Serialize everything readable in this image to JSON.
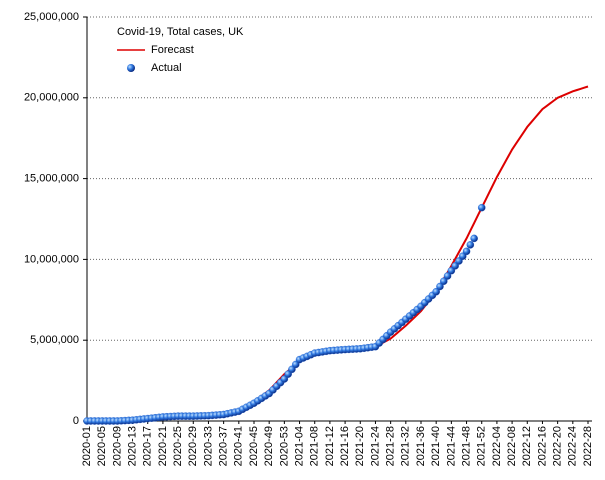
{
  "chart_data": {
    "type": "line",
    "title": "Covid-19, Total cases, UK",
    "categories": [
      "2020-01",
      null,
      null,
      null,
      "2020-05",
      null,
      null,
      null,
      "2020-09",
      null,
      null,
      null,
      "2020-13",
      null,
      null,
      null,
      "2020-17",
      null,
      null,
      null,
      "2020-21",
      null,
      null,
      null,
      "2020-25",
      null,
      null,
      null,
      "2020-29",
      null,
      null,
      null,
      "2020-33",
      null,
      null,
      null,
      "2020-37",
      null,
      null,
      null,
      "2020-41",
      null,
      null,
      null,
      "2020-45",
      null,
      null,
      null,
      "2020-49",
      null,
      null,
      null,
      "2020-53",
      null,
      null,
      null,
      "2021-04",
      null,
      null,
      null,
      "2021-08",
      null,
      null,
      null,
      "2021-12",
      null,
      null,
      null,
      "2021-16",
      null,
      null,
      null,
      "2021-20",
      null,
      null,
      null,
      "2021-24",
      null,
      null,
      null,
      "2021-28",
      null,
      null,
      null,
      "2021-32",
      null,
      null,
      null,
      "2021-36",
      null,
      null,
      null,
      "2021-40",
      null,
      null,
      null,
      "2021-44",
      null,
      null,
      null,
      "2021-48",
      null,
      null,
      null,
      "2021-52",
      null,
      null,
      null,
      "2022-04",
      null,
      null,
      null,
      "2022-08",
      null,
      null,
      null,
      "2022-12",
      null,
      null,
      null,
      "2022-16",
      null,
      null,
      null,
      "2022-20",
      null,
      null,
      null,
      "2022-24",
      null,
      null,
      null,
      "2022-28"
    ],
    "series": [
      {
        "name": "Forecast",
        "type": "line",
        "color": "#dd0000",
        "values": [
          0,
          0,
          0,
          0,
          0,
          2500,
          5000,
          7500,
          10000,
          20000,
          30000,
          40000,
          50000,
          67500,
          85000,
          102500,
          120000,
          140000,
          160000,
          180000,
          200000,
          212500,
          225000,
          237500,
          250000,
          257500,
          265000,
          272500,
          280000,
          290000,
          300000,
          310000,
          320000,
          335000,
          350000,
          365000,
          380000,
          435000,
          490000,
          545000,
          600000,
          750000,
          900000,
          1050000,
          1200000,
          1375000,
          1550000,
          1725000,
          1900000,
          2150000,
          2400000,
          2650000,
          2900000,
          3100000,
          3300000,
          3500000,
          3700000,
          3800000,
          3900000,
          4000000,
          4100000,
          4137500,
          4175000,
          4212500,
          4250000,
          4262500,
          4275000,
          4287500,
          4300000,
          4325000,
          4350000,
          4375000,
          4400000,
          4450000,
          4500000,
          4550000,
          4600000,
          4725000,
          4850000,
          4975000,
          5100000,
          5300000,
          5500000,
          5700000,
          5900000,
          6125000,
          6350000,
          6575000,
          6800000,
          7100000,
          7400000,
          7700000,
          8000000,
          8400000,
          8800000,
          9200000,
          9600000,
          10025000,
          10450000,
          10875000,
          11300000,
          11775000,
          12250000,
          12725000,
          13200000,
          13675000,
          14150000,
          14625000,
          15100000,
          15525000,
          15950000,
          16375000,
          16800000,
          17150000,
          17500000,
          17850000,
          18200000,
          18475000,
          18750000,
          19025000,
          19300000,
          19475000,
          19650000,
          19825000,
          20000000,
          20100000,
          20200000,
          20300000,
          20400000,
          20475000,
          20550000,
          20625000,
          20700000
        ]
      },
      {
        "name": "Actual",
        "type": "scatter",
        "color": "#1f5fd0",
        "values": [
          0,
          0,
          0,
          0,
          0,
          0,
          0,
          0,
          0,
          12500,
          25000,
          37500,
          50000,
          75000,
          100000,
          125000,
          150000,
          175000,
          200000,
          225000,
          250000,
          262500,
          275000,
          287500,
          300000,
          300000,
          300000,
          300000,
          300000,
          307500,
          315000,
          322500,
          330000,
          347500,
          365000,
          382500,
          400000,
          450000,
          500000,
          550000,
          600000,
          725000,
          850000,
          975000,
          1100000,
          1250000,
          1400000,
          1550000,
          1700000,
          1925000,
          2150000,
          2375000,
          2600000,
          2900000,
          3200000,
          3500000,
          3800000,
          3900000,
          4000000,
          4100000,
          4200000,
          4237500,
          4275000,
          4312500,
          4350000,
          4367500,
          4385000,
          4402500,
          4420000,
          4432500,
          4445000,
          4457500,
          4470000,
          4502500,
          4535000,
          4567500,
          4600000,
          4825000,
          5050000,
          5275000,
          5500000,
          5700000,
          5900000,
          6100000,
          6300000,
          6500000,
          6700000,
          6900000,
          7100000,
          7325000,
          7550000,
          7775000,
          8000000,
          8325000,
          8650000,
          8975000,
          9300000,
          9600000,
          9900000,
          10200000,
          10500000,
          10900000,
          11300000,
          null,
          13200000,
          null,
          null,
          null,
          null,
          null,
          null,
          null,
          null,
          null,
          null,
          null,
          null,
          null,
          null,
          null,
          null,
          null,
          null,
          null,
          null,
          null,
          null,
          null,
          null,
          null,
          null,
          null,
          null
        ]
      }
    ],
    "ylim": [
      0,
      25000000
    ],
    "yticks": [
      0,
      {
        "value": 5000000,
        "label": "5,000,000"
      },
      {
        "value": 10000000,
        "label": "10,000,000"
      },
      {
        "value": 15000000,
        "label": "15,000,000"
      },
      {
        "value": 20000000,
        "label": "20,000,000"
      },
      {
        "value": 25000000,
        "label": "25,000,000"
      }
    ],
    "grid": true,
    "legend": "top-left"
  }
}
